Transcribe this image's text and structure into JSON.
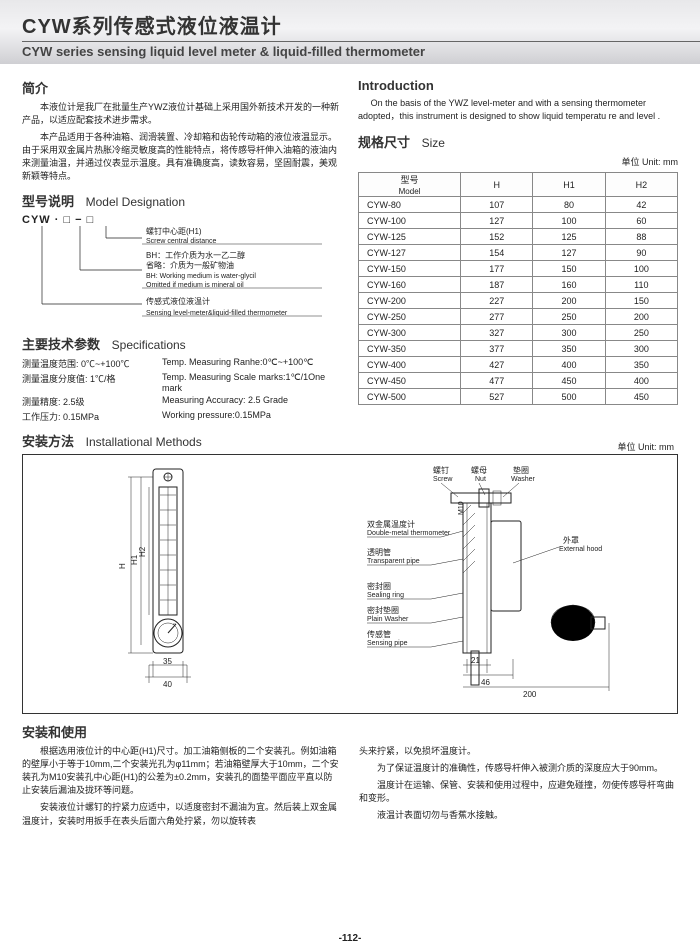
{
  "header": {
    "title_cn": "CYW系列传感式液位液温计",
    "title_en": "CYW series sensing liquid level meter & liquid-filled thermometer"
  },
  "intro_cn": {
    "heading": "简介",
    "p1": "本液位计是我厂在批量生产YWZ液位计基础上采用国外新技术开发的一种新产品，以适应配套技术进步需求。",
    "p2": "本产品适用于各种油箱、润滑装置、冷却箱和齿轮传动箱的液位液温显示。由于采用双金属片热胀冷缩灵敏度高的性能特点，将传感导杆伸入油箱的液油内来测量油温，并通过仪表显示温度。具有准确度高，读数容易，坚固耐震，美观新颖等特点。"
  },
  "intro_en": {
    "heading": "Introduction",
    "p1": "On the basis of the YWZ level-meter and with a sensing thermometer adopted，this instrument is designed to show liquid temperatu re and level ."
  },
  "model": {
    "heading_cn": "型号说明",
    "heading_en": "Model Designation",
    "code": "CYW · □ − □",
    "row1_cn": "螺钉中心距(H1)",
    "row1_en": "Screw central distance",
    "row2_cn": "BH：工作介质为水一乙二醇",
    "row2_cn2": "省略：介质为一般矿物油",
    "row2_en": "BH: Working medium is water-glycil",
    "row2_en2": "Omitted if medium is mineral oil",
    "row3_cn": "传感式液位液温计",
    "row3_en": "Sensing level-meter&liquid-filled thermometer"
  },
  "specs": {
    "heading_cn": "主要技术参数",
    "heading_en": "Specifications",
    "rows": [
      {
        "l": "测量温度范围: 0℃~+100℃",
        "r": "Temp. Measuring Ranhe:0℃~+100℃"
      },
      {
        "l": "测量温度分度值: 1℃/格",
        "r": "Temp. Measuring Scale marks:1℃/1One mark"
      },
      {
        "l": "测量精度: 2.5级",
        "r": "Measuring Accuracy: 2.5 Grade"
      },
      {
        "l": "工作压力: 0.15MPa",
        "r": "Working pressure:0.15MPa"
      }
    ]
  },
  "size": {
    "heading_cn": "规格尺寸",
    "heading_en": "Size",
    "unit": "单位 Unit: mm",
    "cols": [
      "型号\nModel",
      "H",
      "H1",
      "H2"
    ],
    "rows": [
      [
        "CYW-80",
        "107",
        "80",
        "42"
      ],
      [
        "CYW-100",
        "127",
        "100",
        "60"
      ],
      [
        "CYW-125",
        "152",
        "125",
        "88"
      ],
      [
        "CYW-127",
        "154",
        "127",
        "90"
      ],
      [
        "CYW-150",
        "177",
        "150",
        "100"
      ],
      [
        "CYW-160",
        "187",
        "160",
        "110"
      ],
      [
        "CYW-200",
        "227",
        "200",
        "150"
      ],
      [
        "CYW-250",
        "277",
        "250",
        "200"
      ],
      [
        "CYW-300",
        "327",
        "300",
        "250"
      ],
      [
        "CYW-350",
        "377",
        "350",
        "300"
      ],
      [
        "CYW-400",
        "427",
        "400",
        "350"
      ],
      [
        "CYW-450",
        "477",
        "450",
        "400"
      ],
      [
        "CYW-500",
        "527",
        "500",
        "450"
      ]
    ]
  },
  "install": {
    "heading_cn": "安装方法",
    "heading_en": "Installational Methods",
    "unit": "单位 Unit: mm",
    "left_dims": {
      "w": "35",
      "wo": "40",
      "H": "H",
      "H1": "H1",
      "H2": "H2"
    },
    "right_labels": {
      "screw_cn": "螺钉",
      "screw_en": "Screw",
      "nut_cn": "螺母",
      "nut_en": "Nut",
      "washer_cn": "垫圈",
      "washer_en": "Washer",
      "m10": "M10",
      "therm_cn": "双金属温度计",
      "therm_en": "Double-metal thermometer",
      "tube_cn": "透明管",
      "tube_en": "Transparent pipe",
      "seal_cn": "密封圈",
      "seal_en": "Sealing ring",
      "pw_cn": "密封垫圈",
      "pw_en": "Plain Washer",
      "sense_cn": "传感管",
      "sense_en": "Sensing pipe",
      "hood_cn": "外罩",
      "hood_en": "External hood",
      "d21": "21",
      "d46": "46",
      "d200": "200"
    }
  },
  "usage": {
    "heading": "安装和使用",
    "p1": "根据选用液位计的中心距(H1)尺寸。加工油箱侧板的二个安装孔。例如油箱的壁厚小于等于10mm,二个安装光孔为φ11mm；若油箱壁厚大于10mm，二个安装孔为M10安装孔中心距(H1)的公差为±0.2mm，安装孔的面垫平面应平直以防止安装后漏油及拢环等问题。",
    "p2": "安装液位计螺钉的拧紧力应适中，以适度密封不漏油为宜。然后装上双金属温度计，安装时用扳手在表头后面六角处拧紧，勿以旋转表",
    "p3": "头来拧紧，以免损坏温度计。",
    "p4": "为了保证温度计的准确性，传感导杆伸入被测介质的深度应大于90mm。",
    "p5": "温度计在运输、保管、安装和使用过程中，应避免碰撞，勿使传感导杆弯曲和变形。",
    "p6": "液温计表面切勿与香蕉水接触。"
  },
  "page": "-112-"
}
